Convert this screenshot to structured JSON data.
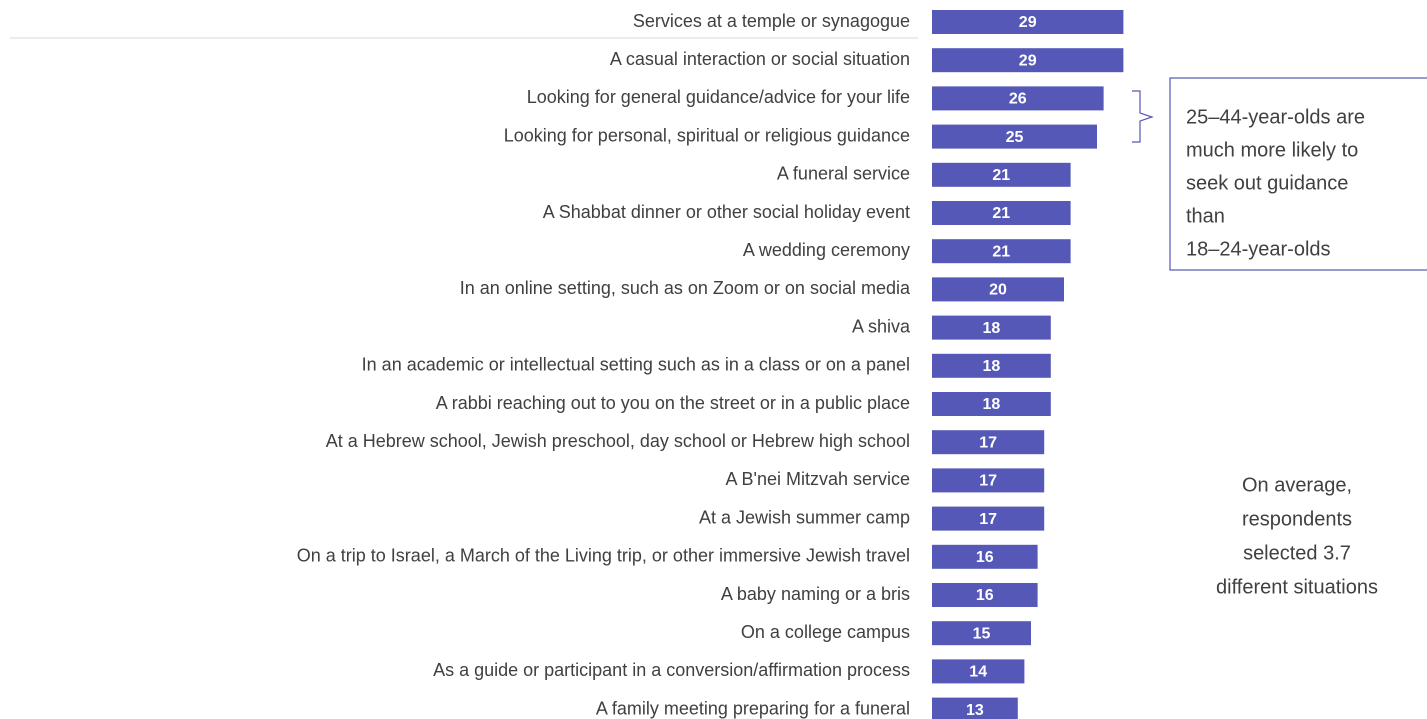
{
  "chart_data": {
    "type": "bar",
    "orientation": "horizontal",
    "color": "#5558b7",
    "categories": [
      "Services at a temple or synagogue",
      "A casual interaction or social situation",
      "Looking for general guidance/advice for your life",
      "Looking for personal, spiritual or religious guidance",
      "A funeral service",
      "A Shabbat dinner or other social holiday event",
      "A wedding ceremony",
      "In an online setting, such as on Zoom or on social media",
      "A shiva",
      "In an academic or intellectual setting such as in a class or on a panel",
      "A rabbi reaching out to you on the street or in a public place",
      "At a Hebrew school, Jewish preschool, day school or Hebrew high school",
      "A B'nei Mitzvah service",
      "At a Jewish summer camp",
      "On a trip to Israel, a March of the Living trip, or other immersive Jewish travel",
      "A baby naming or a bris",
      "On a college campus",
      "As a guide or participant in a conversion/affirmation process",
      "A family meeting preparing for a funeral"
    ],
    "values": [
      29,
      29,
      26,
      25,
      21,
      21,
      21,
      20,
      18,
      18,
      18,
      17,
      17,
      17,
      16,
      16,
      15,
      14,
      13
    ],
    "annotation_box": [
      "25–44-year-olds are",
      "much more likely to",
      "seek out guidance",
      "than",
      "18–24-year-olds"
    ],
    "note": [
      "On average,",
      "respondents",
      "selected 3.7",
      "different situations"
    ]
  }
}
